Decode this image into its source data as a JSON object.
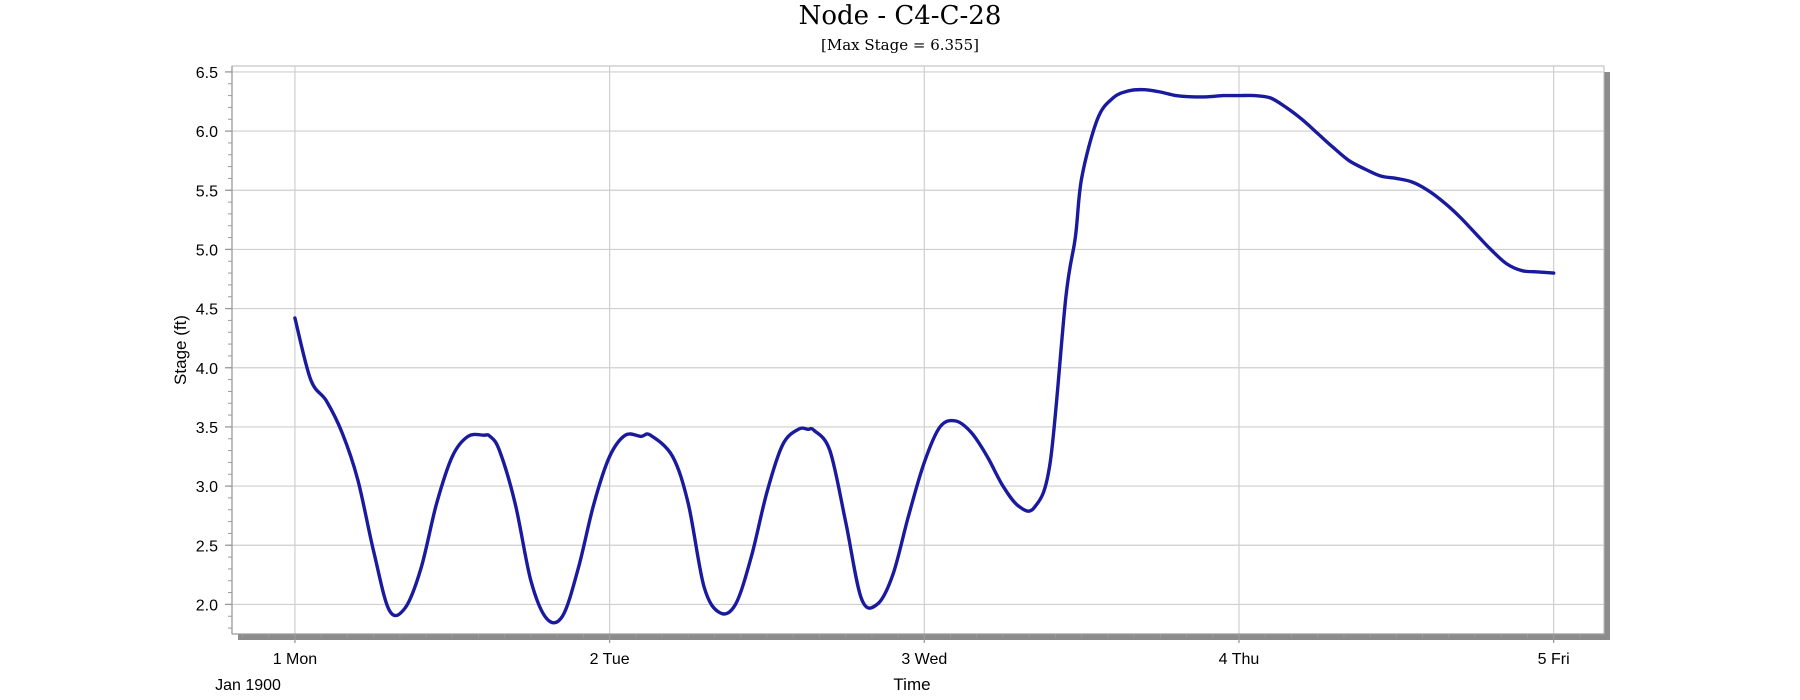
{
  "chart_data": {
    "type": "line",
    "title": "Node - C4-C-28",
    "subtitle": "[Max Stage = 6.355]",
    "xlabel": "Time",
    "ylabel": "Stage (ft)",
    "x_tick_labels": [
      "1 Mon",
      "2 Tue",
      "3 Wed",
      "4 Thu",
      "5 Fri"
    ],
    "x_tick_sublabel": "Jan 1900",
    "xlim": [
      0.8,
      5.16
    ],
    "ylim": [
      1.75,
      6.55
    ],
    "y_ticks": [
      "2.0",
      "2.5",
      "3.0",
      "3.5",
      "4.0",
      "4.5",
      "5.0",
      "5.5",
      "6.0",
      "6.5"
    ],
    "grid": true,
    "series": [
      {
        "color": "#1a1a9e",
        "x": [
          1.0,
          1.05,
          1.1,
          1.15,
          1.2,
          1.25,
          1.3,
          1.35,
          1.4,
          1.45,
          1.5,
          1.55,
          1.6,
          1.62,
          1.65,
          1.7,
          1.75,
          1.8,
          1.85,
          1.9,
          1.95,
          2.0,
          2.05,
          2.1,
          2.13,
          2.2,
          2.25,
          2.3,
          2.35,
          2.4,
          2.45,
          2.5,
          2.55,
          2.6,
          2.63,
          2.65,
          2.7,
          2.75,
          2.8,
          2.85,
          2.9,
          2.95,
          3.0,
          3.05,
          3.1,
          3.15,
          3.2,
          3.25,
          3.3,
          3.35,
          3.4,
          3.45,
          3.48,
          3.5,
          3.55,
          3.6,
          3.65,
          3.7,
          3.75,
          3.8,
          3.85,
          3.9,
          3.95,
          4.0,
          4.05,
          4.1,
          4.15,
          4.2,
          4.25,
          4.3,
          4.35,
          4.4,
          4.45,
          4.5,
          4.55,
          4.6,
          4.65,
          4.7,
          4.75,
          4.8,
          4.85,
          4.9,
          4.95,
          5.0
        ],
        "y": [
          4.42,
          3.9,
          3.72,
          3.45,
          3.05,
          2.45,
          1.95,
          1.97,
          2.3,
          2.85,
          3.25,
          3.42,
          3.43,
          3.42,
          3.3,
          2.85,
          2.2,
          1.88,
          1.9,
          2.3,
          2.85,
          3.25,
          3.43,
          3.42,
          3.43,
          3.25,
          2.85,
          2.15,
          1.93,
          2.0,
          2.4,
          2.95,
          3.35,
          3.48,
          3.48,
          3.47,
          3.3,
          2.7,
          2.05,
          2.0,
          2.25,
          2.75,
          3.2,
          3.5,
          3.55,
          3.45,
          3.25,
          3.0,
          2.83,
          2.82,
          3.2,
          4.6,
          5.1,
          5.6,
          6.1,
          6.28,
          6.34,
          6.35,
          6.33,
          6.3,
          6.29,
          6.29,
          6.3,
          6.3,
          6.3,
          6.28,
          6.2,
          6.1,
          5.98,
          5.86,
          5.75,
          5.68,
          5.62,
          5.6,
          5.57,
          5.5,
          5.4,
          5.28,
          5.14,
          5.0,
          4.88,
          4.82,
          4.81,
          4.8
        ]
      }
    ]
  }
}
